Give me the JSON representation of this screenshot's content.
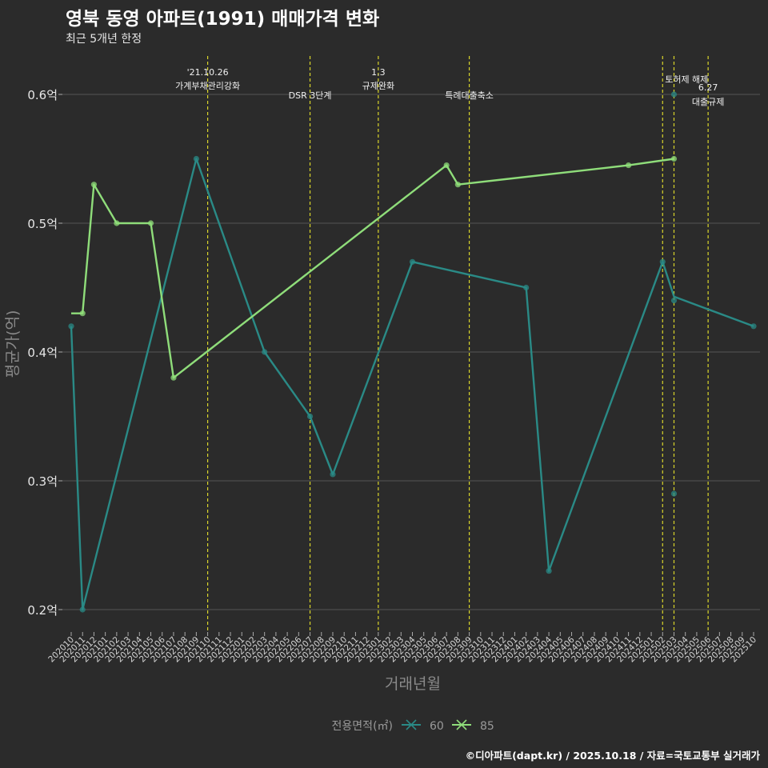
{
  "header": {
    "title": "영북 동영 아파트(1991) 매매가격 변화",
    "subtitle": "최근 5개년 한정"
  },
  "caption": "©디아파트(dapt.kr) / 2025.10.18 / 자료=국토교통부 실거래가",
  "colors": {
    "background": "#2b2b2b",
    "grid": "#555555",
    "series_60": "#2a8a86",
    "series_85": "#8fdd7a",
    "event_line": "#d9d52b"
  },
  "chart_data": {
    "type": "line",
    "title": "영북 동영 아파트(1991) 매매가격 변화",
    "subtitle": "최근 5개년 한정",
    "xlabel": "거래년월",
    "ylabel": "평균가(억)",
    "ylim": [
      0.18,
      0.63
    ],
    "yticks": [
      0.2,
      0.3,
      0.4,
      0.5,
      0.6
    ],
    "ytick_labels": [
      "0.2억",
      "0.3억",
      "0.4억",
      "0.5억",
      "0.6억"
    ],
    "xticks": [
      "202010",
      "202011",
      "202012",
      "202101",
      "202102",
      "202103",
      "202104",
      "202105",
      "202106",
      "202107",
      "202108",
      "202109",
      "202110",
      "202111",
      "202112",
      "202201",
      "202202",
      "202203",
      "202204",
      "202205",
      "202206",
      "202207",
      "202208",
      "202209",
      "202210",
      "202211",
      "202212",
      "202301",
      "202302",
      "202303",
      "202304",
      "202305",
      "202306",
      "202307",
      "202308",
      "202309",
      "202310",
      "202311",
      "202312",
      "202401",
      "202402",
      "202403",
      "202404",
      "202405",
      "202406",
      "202407",
      "202408",
      "202409",
      "202410",
      "202411",
      "202412",
      "202501",
      "202502",
      "202503",
      "202504",
      "202505",
      "202506",
      "202507",
      "202508",
      "202509",
      "202510"
    ],
    "legend": {
      "title": "전용면적(㎡)",
      "position": "bottom",
      "entries": [
        "60",
        "85"
      ]
    },
    "series": [
      {
        "name": "60",
        "line": [
          {
            "x": "202010",
            "y": 0.42
          },
          {
            "x": "202011",
            "y": 0.2
          },
          {
            "x": "202109",
            "y": 0.55
          },
          {
            "x": "202203",
            "y": 0.4
          },
          {
            "x": "202207",
            "y": 0.35
          },
          {
            "x": "202209",
            "y": 0.305
          },
          {
            "x": "202304",
            "y": 0.47
          },
          {
            "x": "202402",
            "y": 0.45
          },
          {
            "x": "202404",
            "y": 0.23
          },
          {
            "x": "202502",
            "y": 0.47
          },
          {
            "x": "202503",
            "y": 0.443
          },
          {
            "x": "202510",
            "y": 0.42
          }
        ],
        "points": [
          {
            "x": "202010",
            "y": 0.42
          },
          {
            "x": "202011",
            "y": 0.2
          },
          {
            "x": "202109",
            "y": 0.55
          },
          {
            "x": "202203",
            "y": 0.4
          },
          {
            "x": "202207",
            "y": 0.35
          },
          {
            "x": "202209",
            "y": 0.305
          },
          {
            "x": "202304",
            "y": 0.47
          },
          {
            "x": "202402",
            "y": 0.45
          },
          {
            "x": "202404",
            "y": 0.23
          },
          {
            "x": "202502",
            "y": 0.47
          },
          {
            "x": "202503",
            "y": 0.6
          },
          {
            "x": "202503",
            "y": 0.44
          },
          {
            "x": "202503",
            "y": 0.29
          },
          {
            "x": "202510",
            "y": 0.42
          }
        ]
      },
      {
        "name": "85",
        "line": [
          {
            "x": "202010",
            "y": 0.43
          },
          {
            "x": "202011",
            "y": 0.43
          },
          {
            "x": "202012",
            "y": 0.53
          },
          {
            "x": "202102",
            "y": 0.5
          },
          {
            "x": "202105",
            "y": 0.5
          },
          {
            "x": "202107",
            "y": 0.38
          },
          {
            "x": "202307",
            "y": 0.545
          },
          {
            "x": "202308",
            "y": 0.53
          },
          {
            "x": "202411",
            "y": 0.545
          },
          {
            "x": "202503",
            "y": 0.55
          }
        ],
        "points": [
          {
            "x": "202011",
            "y": 0.43
          },
          {
            "x": "202012",
            "y": 0.53
          },
          {
            "x": "202102",
            "y": 0.5
          },
          {
            "x": "202105",
            "y": 0.5
          },
          {
            "x": "202107",
            "y": 0.38
          },
          {
            "x": "202307",
            "y": 0.545
          },
          {
            "x": "202308",
            "y": 0.53
          },
          {
            "x": "202411",
            "y": 0.545
          },
          {
            "x": "202503",
            "y": 0.55
          }
        ]
      }
    ],
    "events": [
      {
        "x": "202110",
        "lines": [
          "'21.10.26",
          "가계부채관리강화"
        ],
        "row": "upper"
      },
      {
        "x": "202207",
        "lines": [
          "DSR 3단계"
        ],
        "row": "lower"
      },
      {
        "x": "202301",
        "lines": [
          "1.3",
          "규제완화"
        ],
        "row": "upper"
      },
      {
        "x": "202309",
        "lines": [
          "특례대출축소"
        ],
        "row": "lower"
      },
      {
        "x": "202502",
        "lines": [
          "토허제 해제"
        ],
        "row": "upper2",
        "anchor": "end"
      },
      {
        "x": "202503",
        "lines": [],
        "row": "upper2"
      },
      {
        "x": "202506",
        "lines": [
          "6.27",
          "대출규제"
        ],
        "row": "mid"
      }
    ]
  }
}
